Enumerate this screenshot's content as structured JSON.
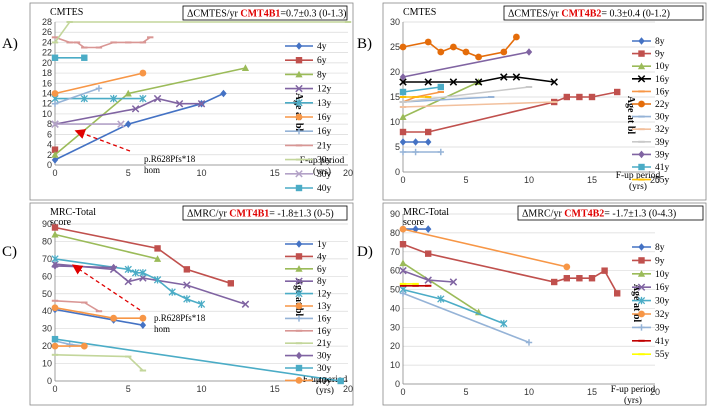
{
  "chart_data": [
    {
      "type": "line",
      "panel": "A)",
      "title": "CMTES",
      "rate": {
        "prefix": "ΔCMTES/yr ",
        "gene": "CMT4B1",
        "value": "=0.7±0.3 (0-1.3)"
      },
      "xlabel": "F-up period (yrs)",
      "xlabel_lines": [
        "F-up period",
        "(yrs)"
      ],
      "ylabel": "Age at bl",
      "xlim": [
        0,
        20
      ],
      "ylim": [
        0,
        28
      ],
      "xticks": [
        0,
        5,
        10,
        15,
        20
      ],
      "yticks": [
        0,
        2,
        4,
        6,
        8,
        10,
        12,
        14,
        16,
        18,
        20,
        22,
        24,
        26,
        28
      ],
      "annotation": {
        "lines": [
          "p.R628Pfs*18",
          "hom"
        ],
        "arrow_to": [
          1.5,
          6.6
        ]
      },
      "series": [
        {
          "name": "4y",
          "color": "#4472C4",
          "marker": "diamond",
          "x": [
            0,
            5,
            10,
            11.5
          ],
          "y": [
            1,
            8,
            12,
            14
          ]
        },
        {
          "name": "6y",
          "color": "#C0504D",
          "marker": "square",
          "x": [
            0
          ],
          "y": [
            3
          ]
        },
        {
          "name": "8y",
          "color": "#9BBB59",
          "marker": "triangle",
          "x": [
            0,
            5,
            13
          ],
          "y": [
            2,
            14,
            19
          ]
        },
        {
          "name": "12y",
          "color": "#8064A2",
          "marker": "x",
          "x": [
            0,
            5.5,
            7,
            8.5,
            10
          ],
          "y": [
            8,
            11,
            13,
            12,
            12
          ]
        },
        {
          "name": "13y",
          "color": "#4BACC6",
          "marker": "star",
          "x": [
            0,
            2,
            4,
            6
          ],
          "y": [
            13,
            13,
            13,
            13
          ]
        },
        {
          "name": "16y",
          "color": "#F79646",
          "marker": "circle",
          "x": [
            0,
            6
          ],
          "y": [
            14,
            18
          ]
        },
        {
          "name": "16y",
          "color": "#95B3D7",
          "marker": "plus",
          "x": [
            0,
            3
          ],
          "y": [
            12,
            15
          ]
        },
        {
          "name": "21y",
          "color": "#D99694",
          "marker": "dash",
          "x": [
            0,
            1,
            1.5,
            2,
            3,
            4,
            5,
            6,
            6.5
          ],
          "y": [
            25,
            24,
            24,
            23,
            23,
            24,
            24,
            24,
            25
          ]
        },
        {
          "name": "30y",
          "color": "#C3D69B",
          "marker": "dash",
          "x": [
            0,
            1,
            20
          ],
          "y": [
            24,
            28,
            28
          ]
        },
        {
          "name": "30y",
          "color": "#B3A2C7",
          "marker": "x",
          "x": [
            0,
            4.5
          ],
          "y": [
            8,
            8
          ]
        },
        {
          "name": "40y",
          "color": "#4BACC6",
          "marker": "square",
          "x": [
            0,
            2
          ],
          "y": [
            21,
            21
          ]
        }
      ]
    },
    {
      "type": "line",
      "panel": "B)",
      "title": "CMTES",
      "rate": {
        "prefix": "ΔCMTES/yr ",
        "gene": "CMT4B2",
        "value": "= 0.3±0.4 (0-1.2)"
      },
      "xlabel": "F-up period (yrs)",
      "xlabel_lines": [
        "F-up period",
        "(yrs)"
      ],
      "ylabel": "Age at bl",
      "xlim": [
        0,
        20
      ],
      "ylim": [
        0,
        30
      ],
      "xticks": [
        0,
        5,
        10,
        15,
        20
      ],
      "yticks": [
        0,
        5,
        10,
        15,
        20,
        25,
        30
      ],
      "series": [
        {
          "name": "8y",
          "color": "#4472C4",
          "marker": "diamond",
          "x": [
            0,
            1,
            2
          ],
          "y": [
            6,
            6,
            6
          ]
        },
        {
          "name": "9y",
          "color": "#C0504D",
          "marker": "square",
          "x": [
            0,
            2,
            12,
            13,
            14,
            15,
            17
          ],
          "y": [
            8,
            8,
            14,
            15,
            15,
            15,
            16
          ]
        },
        {
          "name": "10y",
          "color": "#9BBB59",
          "marker": "triangle",
          "x": [
            0,
            6
          ],
          "y": [
            11,
            18
          ]
        },
        {
          "name": "16y",
          "color": "#000000",
          "marker": "x",
          "x": [
            0,
            2,
            4,
            6,
            8,
            9,
            12
          ],
          "y": [
            18,
            18,
            18,
            18,
            19,
            19,
            18
          ]
        },
        {
          "name": "16y",
          "color": "#F79646",
          "marker": "dash",
          "x": [
            0,
            1,
            3
          ],
          "y": [
            14,
            15,
            16
          ]
        },
        {
          "name": "22y",
          "color": "#E46C0A",
          "marker": "circle",
          "x": [
            0,
            2,
            3,
            4,
            5,
            6,
            8,
            9
          ],
          "y": [
            25,
            26,
            24,
            25,
            24,
            23,
            24,
            27
          ]
        },
        {
          "name": "30y",
          "color": "#95B3D7",
          "marker": "dash",
          "x": [
            0,
            7
          ],
          "y": [
            14,
            15
          ]
        },
        {
          "name": "32y",
          "color": "#F2C09D",
          "marker": "dash",
          "x": [
            0,
            12
          ],
          "y": [
            13,
            14
          ]
        },
        {
          "name": "39y",
          "color": "#C9C9C9",
          "marker": "dash",
          "x": [
            0,
            10
          ],
          "y": [
            14,
            17
          ]
        },
        {
          "name": "39y",
          "color": "#8064A2",
          "marker": "diamond",
          "x": [
            0,
            10
          ],
          "y": [
            19,
            24
          ]
        },
        {
          "name": "41y",
          "color": "#4BACC6",
          "marker": "square",
          "x": [
            0,
            3
          ],
          "y": [
            16,
            17
          ]
        },
        {
          "name": "55y",
          "color": "#FFC000",
          "marker": "dash",
          "x": [
            0,
            2
          ],
          "y": [
            15,
            15
          ]
        },
        {
          "name": "",
          "color": "#95B3D7",
          "marker": "plus",
          "x": [
            0,
            1,
            3
          ],
          "y": [
            4,
            4,
            4
          ]
        }
      ]
    },
    {
      "type": "line",
      "panel": "C)",
      "title": "MRC-Total score",
      "title_lines": [
        "MRC-Total",
        "score"
      ],
      "rate": {
        "prefix": "ΔMRC/yr ",
        "gene": "CMT4B1",
        "value": "= -1.8±1.3 (0-5)"
      },
      "xlabel": "F-up period (yrs)",
      "xlabel_lines": [
        "F-up period",
        "(yrs)"
      ],
      "ylabel": "Age at bl",
      "xlim": [
        0,
        20
      ],
      "ylim": [
        0,
        90
      ],
      "xticks": [
        0,
        5,
        10,
        15,
        20
      ],
      "yticks": [
        0,
        10,
        20,
        30,
        40,
        50,
        60,
        70,
        80,
        90
      ],
      "annotation": {
        "lines": [
          "p.R628Pfs*18",
          "hom"
        ],
        "arrow_to": [
          1.3,
          66
        ]
      },
      "series": [
        {
          "name": "1y",
          "color": "#4472C4",
          "marker": "diamond",
          "x": [
            0,
            4,
            6
          ],
          "y": [
            41,
            35,
            32
          ]
        },
        {
          "name": "4y",
          "color": "#C0504D",
          "marker": "square",
          "x": [
            0,
            7,
            9,
            12
          ],
          "y": [
            88,
            76,
            64,
            56
          ]
        },
        {
          "name": "6y",
          "color": "#9BBB59",
          "marker": "triangle",
          "x": [
            0,
            7
          ],
          "y": [
            84,
            70
          ]
        },
        {
          "name": "8y",
          "color": "#8064A2",
          "marker": "x",
          "x": [
            0,
            4,
            5,
            6,
            9,
            13
          ],
          "y": [
            67,
            64,
            57,
            59,
            55,
            44
          ]
        },
        {
          "name": "12y",
          "color": "#4BACC6",
          "marker": "star",
          "x": [
            0,
            5,
            5.5,
            6,
            7,
            8,
            9,
            10
          ],
          "y": [
            70,
            64,
            62,
            62,
            58,
            51,
            47,
            44
          ]
        },
        {
          "name": "13y",
          "color": "#F79646",
          "marker": "circle",
          "x": [
            0,
            4,
            6
          ],
          "y": [
            42,
            36,
            36
          ]
        },
        {
          "name": "16y",
          "color": "#95B3D7",
          "marker": "plus",
          "x": [
            0,
            1,
            2
          ],
          "y": [
            23,
            21,
            20
          ]
        },
        {
          "name": "16y",
          "color": "#D99694",
          "marker": "dash",
          "x": [
            0,
            2,
            3
          ],
          "y": [
            46,
            45,
            40
          ]
        },
        {
          "name": "21y",
          "color": "#C3D69B",
          "marker": "dash",
          "x": [
            0,
            5,
            6
          ],
          "y": [
            15,
            14,
            6
          ]
        },
        {
          "name": "30y",
          "color": "#8064A2",
          "marker": "diamond",
          "x": [
            0,
            4
          ],
          "y": [
            66,
            65
          ]
        },
        {
          "name": "30y",
          "color": "#4BACC6",
          "marker": "square",
          "x": [
            0,
            19.5
          ],
          "y": [
            24,
            0
          ]
        },
        {
          "name": "40y",
          "color": "#F79646",
          "marker": "circle",
          "x": [
            0,
            2
          ],
          "y": [
            20,
            20
          ]
        }
      ]
    },
    {
      "type": "line",
      "panel": "D)",
      "title": "MRC-Total score",
      "title_lines": [
        "MRC-Total",
        "score"
      ],
      "rate": {
        "prefix": "ΔMRC/yr ",
        "gene": "CMT4B2",
        "value": "= -1.7±1.3 (0-4.3)"
      },
      "xlabel": "F-up period (yrs)",
      "xlabel_lines": [
        "F-up period",
        "(yrs)"
      ],
      "ylabel": "Age at bl",
      "xlim": [
        0,
        20
      ],
      "ylim": [
        0,
        90
      ],
      "xticks": [
        0,
        5,
        10,
        15,
        20
      ],
      "yticks": [
        0,
        10,
        20,
        30,
        40,
        50,
        60,
        70,
        80,
        90
      ],
      "series": [
        {
          "name": "8y",
          "color": "#4472C4",
          "marker": "diamond",
          "x": [
            0,
            1,
            2
          ],
          "y": [
            82,
            82,
            82
          ]
        },
        {
          "name": "9y",
          "color": "#C0504D",
          "marker": "square",
          "x": [
            0,
            2,
            12,
            13,
            14,
            15,
            16,
            17
          ],
          "y": [
            74,
            69,
            54,
            56,
            56,
            56,
            60,
            48
          ]
        },
        {
          "name": "10y",
          "color": "#9BBB59",
          "marker": "triangle",
          "x": [
            0,
            6
          ],
          "y": [
            64,
            38
          ]
        },
        {
          "name": "16y",
          "color": "#8064A2",
          "marker": "x",
          "x": [
            0,
            2,
            4
          ],
          "y": [
            60,
            55,
            54
          ]
        },
        {
          "name": "30y",
          "color": "#4BACC6",
          "marker": "star",
          "x": [
            0,
            3,
            8
          ],
          "y": [
            50,
            45,
            32
          ]
        },
        {
          "name": "32y",
          "color": "#F79646",
          "marker": "circle",
          "x": [
            0,
            13
          ],
          "y": [
            82,
            62
          ]
        },
        {
          "name": "39y",
          "color": "#95B3D7",
          "marker": "plus",
          "x": [
            0,
            10
          ],
          "y": [
            48,
            22
          ]
        },
        {
          "name": "41y",
          "color": "#C00000",
          "marker": "dash",
          "x": [
            0,
            1,
            2
          ],
          "y": [
            52,
            52,
            52
          ]
        },
        {
          "name": "55y",
          "color": "#FFFF00",
          "marker": "dash",
          "x": [
            0,
            1
          ],
          "y": [
            53,
            53
          ]
        }
      ]
    }
  ]
}
